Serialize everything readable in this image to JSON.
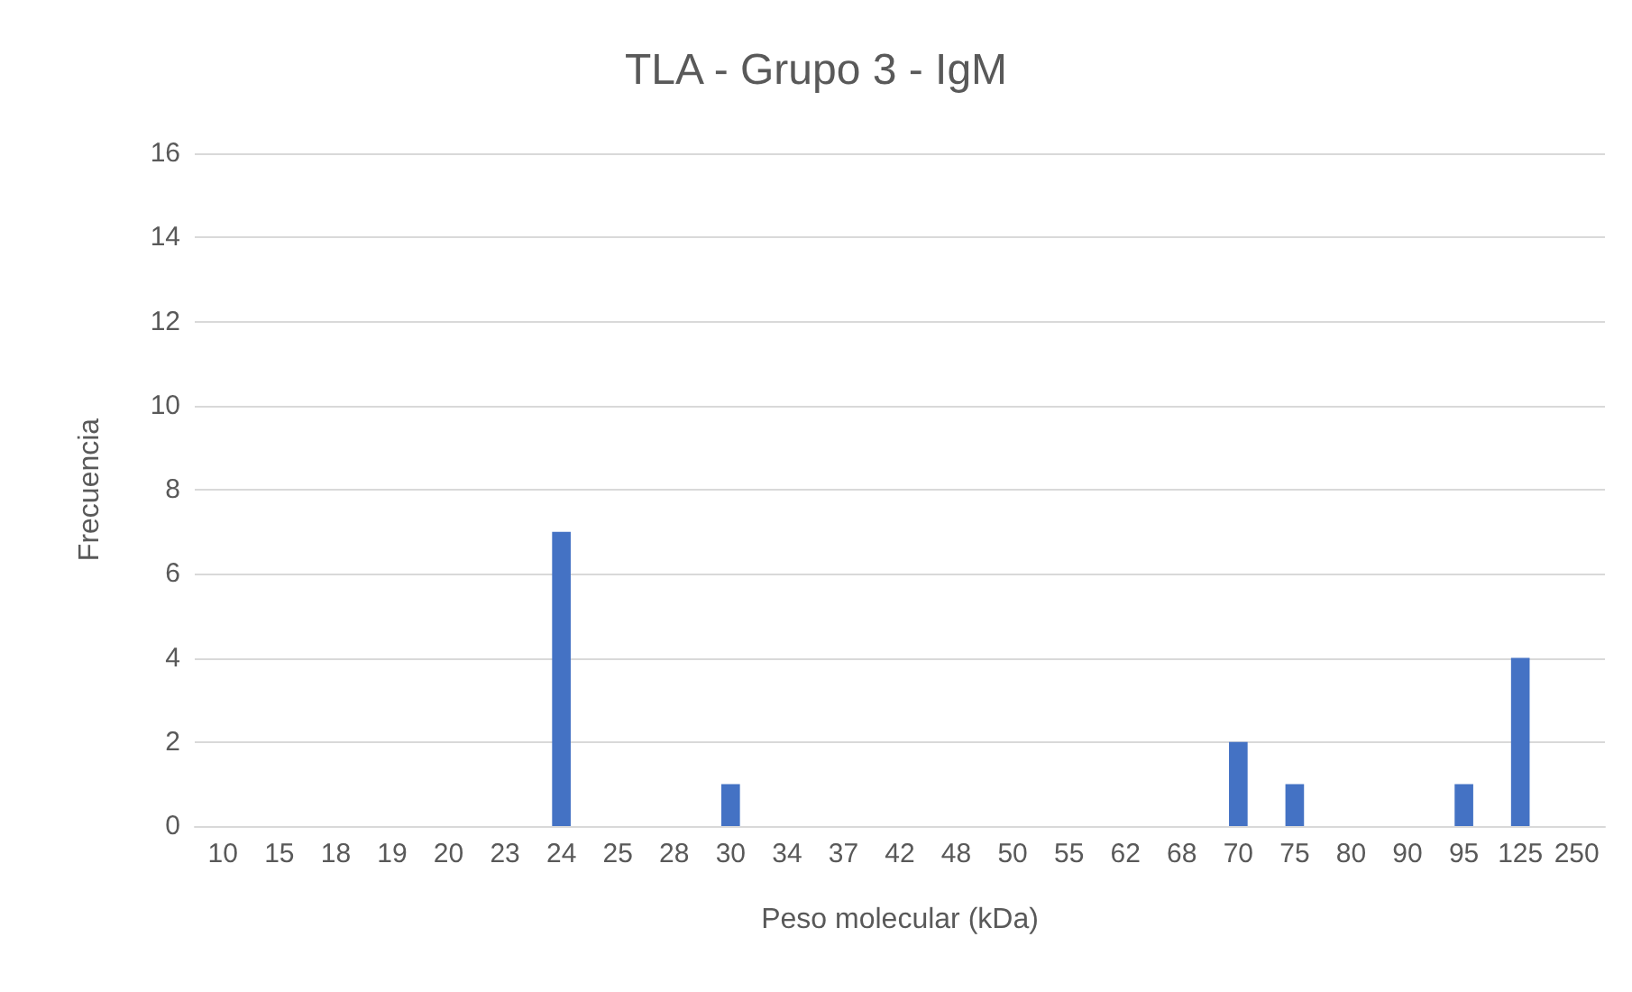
{
  "chart_data": {
    "type": "bar",
    "title": "TLA - Grupo 3 - IgM",
    "xlabel": "Peso molecular (kDa)",
    "ylabel": "Frecuencia",
    "categories": [
      "10",
      "15",
      "18",
      "19",
      "20",
      "23",
      "24",
      "25",
      "28",
      "30",
      "34",
      "37",
      "42",
      "48",
      "50",
      "55",
      "62",
      "68",
      "70",
      "75",
      "80",
      "90",
      "95",
      "125",
      "250"
    ],
    "values": [
      0,
      0,
      0,
      0,
      0,
      0,
      7,
      0,
      0,
      1,
      0,
      0,
      0,
      0,
      0,
      0,
      0,
      0,
      2,
      1,
      0,
      0,
      1,
      4,
      0
    ],
    "color": "#4472c4",
    "ylim": [
      0,
      16
    ],
    "yticks": [
      0,
      2,
      4,
      6,
      8,
      10,
      12,
      14,
      16
    ],
    "grid": "y"
  }
}
